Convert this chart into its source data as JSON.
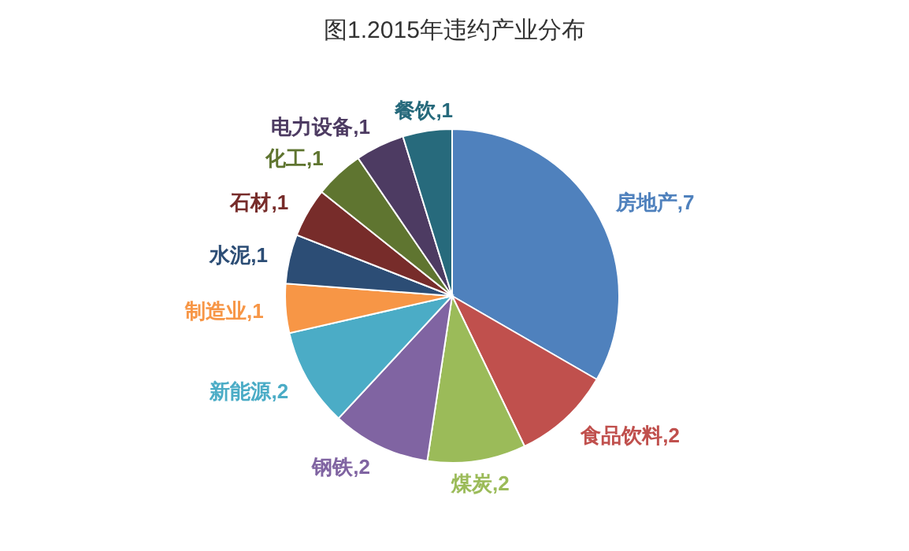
{
  "chart_data": {
    "type": "pie",
    "title": "图1.2015年违约产业分布",
    "categories": [
      "房地产",
      "食品饮料",
      "煤炭",
      "钢铁",
      "新能源",
      "制造业",
      "水泥",
      "石材",
      "化工",
      "电力设备",
      "餐饮"
    ],
    "values": [
      7,
      2,
      2,
      2,
      2,
      1,
      1,
      1,
      1,
      1,
      1
    ],
    "colors": [
      "#4f81bd",
      "#c0504d",
      "#9bbb59",
      "#8064a2",
      "#4bacc6",
      "#f79646",
      "#2c4d75",
      "#772c2a",
      "#5f7530",
      "#4d3b62",
      "#276a7c"
    ],
    "value_labels": [
      ",7",
      ",2",
      ",2",
      ",2",
      ",2",
      ",1",
      ",1",
      ",1",
      ",1",
      ",1",
      ",1"
    ]
  }
}
